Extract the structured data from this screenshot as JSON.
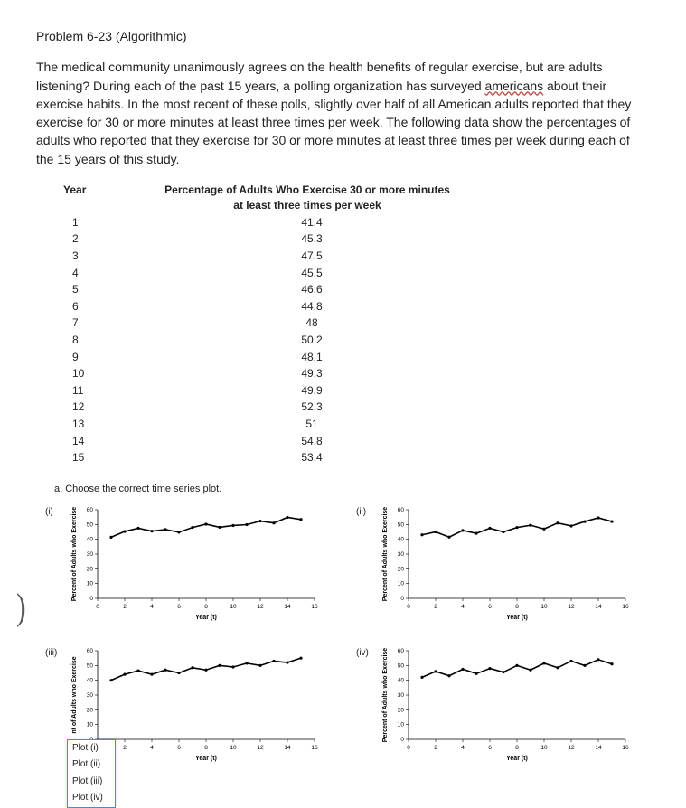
{
  "title": "Problem 6-23 (Algorithmic)",
  "paragraph": {
    "pre": "The medical community unanimously agrees on the health benefits of regular exercise, but are adults listening? During each of the past 15 years, a polling organization has surveyed ",
    "squiggle": "americans",
    "post": " about their exercise habits. In the most recent of these polls, slightly over half of all American adults reported that they exercise for 30 or more minutes at least three times per week. The following data show the percentages of adults who reported that they exercise for 30 or more minutes at least three times per week during each of the 15 years of this study."
  },
  "table": {
    "header_year": "Year",
    "header_pct": "Percentage of Adults Who Exercise 30 or more minutes at least three times per week",
    "rows": [
      {
        "year": "1",
        "pct": "41.4"
      },
      {
        "year": "2",
        "pct": "45.3"
      },
      {
        "year": "3",
        "pct": "47.5"
      },
      {
        "year": "4",
        "pct": "45.5"
      },
      {
        "year": "5",
        "pct": "46.6"
      },
      {
        "year": "6",
        "pct": "44.8"
      },
      {
        "year": "7",
        "pct": "48"
      },
      {
        "year": "8",
        "pct": "50.2"
      },
      {
        "year": "9",
        "pct": "48.1"
      },
      {
        "year": "10",
        "pct": "49.3"
      },
      {
        "year": "11",
        "pct": "49.9"
      },
      {
        "year": "12",
        "pct": "52.3"
      },
      {
        "year": "13",
        "pct": "51"
      },
      {
        "year": "14",
        "pct": "54.8"
      },
      {
        "year": "15",
        "pct": "53.4"
      }
    ]
  },
  "question": "a.  Choose the correct time series plot.",
  "plot_axes": {
    "xlabel": "Year (t)",
    "ylabel": "Percent of Adults who Exercise",
    "ylabel_truncated": "nt of Adults who Exercise",
    "xmin": 0,
    "xmax": 16,
    "xtick": 2,
    "ymin": 0,
    "ymax": 60,
    "ytick": 10,
    "line_color": "#000000",
    "line_width": 1.6,
    "background": "#ffffff",
    "axis_font_size": 7,
    "tick_font_size": 6.5
  },
  "plots": [
    {
      "label": "(i)",
      "ylabel_key": "ylabel",
      "y": [
        41.4,
        45.3,
        47.5,
        45.5,
        46.6,
        44.8,
        48.0,
        50.2,
        48.1,
        49.3,
        49.9,
        52.3,
        51.0,
        54.8,
        53.4
      ]
    },
    {
      "label": "(ii)",
      "ylabel_key": "ylabel",
      "y": [
        43.0,
        45.0,
        41.5,
        46.0,
        44.0,
        47.5,
        45.0,
        48.0,
        49.5,
        47.0,
        51.0,
        49.0,
        52.0,
        54.5,
        52.0
      ]
    },
    {
      "label": "(iii)",
      "ylabel_key": "ylabel_truncated",
      "y": [
        40.0,
        44.0,
        46.5,
        44.0,
        47.0,
        45.0,
        48.5,
        47.0,
        50.0,
        49.0,
        51.5,
        50.0,
        53.0,
        52.0,
        55.0
      ]
    },
    {
      "label": "(iv)",
      "ylabel_key": "ylabel",
      "y": [
        42.0,
        46.0,
        43.0,
        47.5,
        44.5,
        48.0,
        45.5,
        50.0,
        47.0,
        51.5,
        48.5,
        53.0,
        50.0,
        54.0,
        51.0
      ]
    }
  ],
  "dropdown": {
    "options": [
      "Plot (i)",
      "Plot (ii)",
      "Plot (iii)",
      "Plot (iv)"
    ]
  },
  "bracket_glyph": ")"
}
